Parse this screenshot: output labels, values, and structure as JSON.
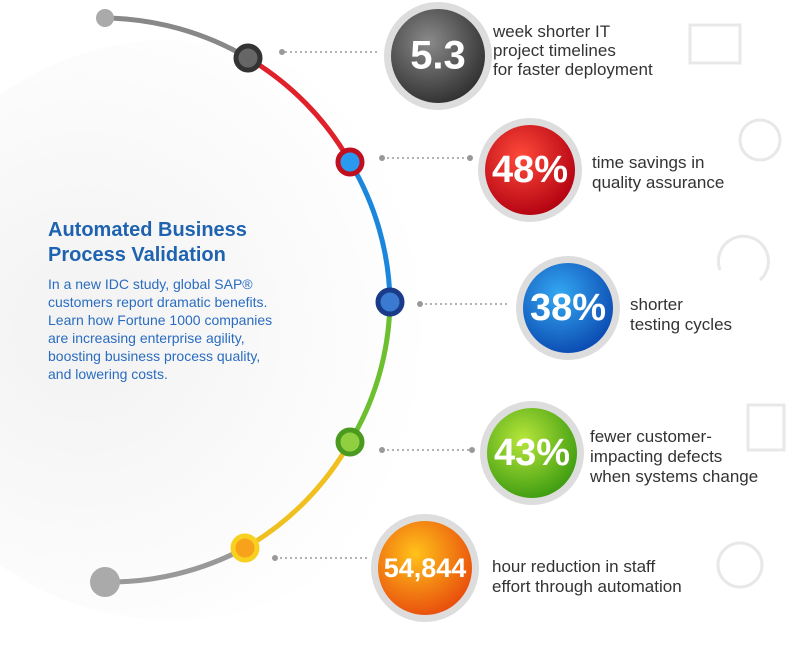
{
  "header": {
    "title_lines": [
      "Automated Business",
      "Process Validation"
    ],
    "description_lines": [
      "In a new IDC study, global SAP®",
      "customers report dramatic benefits.",
      "Learn how Fortune 1000 companies",
      "are increasing enterprise agility,",
      "boosting business process quality,",
      "and lowering costs."
    ]
  },
  "items": [
    {
      "value": "5.3",
      "lines": [
        "week shorter IT",
        "project timelines",
        "for faster deployment"
      ]
    },
    {
      "value": "48%",
      "lines": [
        "time savings in",
        "quality assurance"
      ]
    },
    {
      "value": "38%",
      "lines": [
        "shorter",
        "testing cycles"
      ]
    },
    {
      "value": "43%",
      "lines": [
        "fewer customer-",
        "impacting defects",
        "when systems change"
      ]
    },
    {
      "value": "54,844",
      "lines": [
        "hour reduction in staff",
        "effort through automation"
      ]
    }
  ]
}
